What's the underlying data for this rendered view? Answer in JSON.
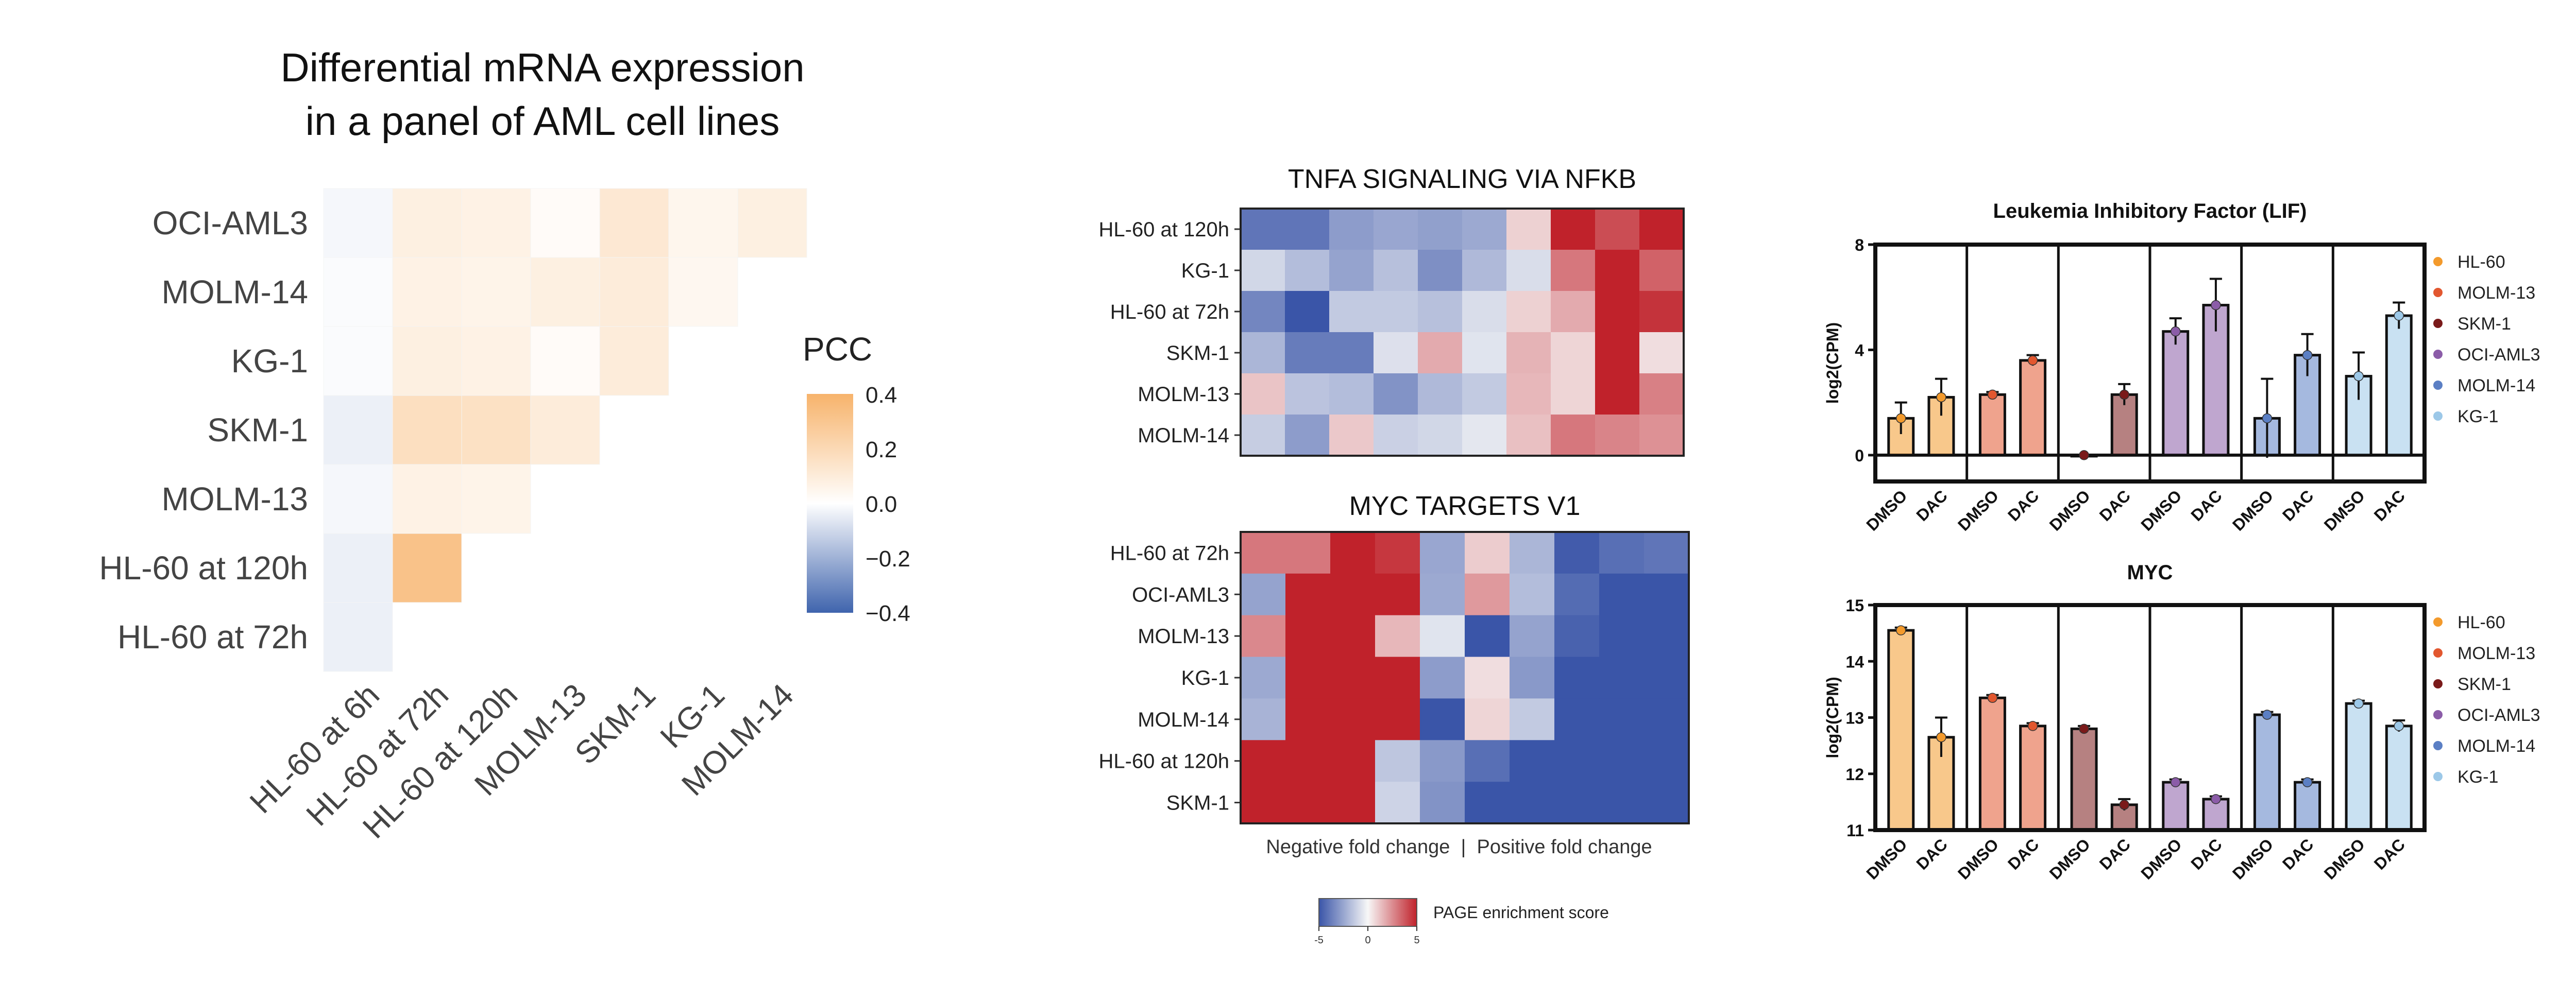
{
  "colors": {
    "pcc_positive": "#f7b36b",
    "pcc_zero": "#ffffff",
    "pcc_negative": "#3f64ad",
    "page_positive": "#c0222b",
    "page_zero": "#f7f7f7",
    "page_negative": "#3a55a8",
    "series": {
      "HL-60": "#f39a2c",
      "MOLM-13": "#e2572f",
      "SKM-1": "#7a1a1a",
      "OCI-AML3": "#8b5ca8",
      "MOLM-14": "#5b7fc4",
      "KG-1": "#9cc8e8"
    }
  },
  "panel_a": {
    "title_line1": "Differential mRNA expression",
    "title_line2": "in a panel of AML cell lines",
    "legend_title": "PCC",
    "legend_ticks": [
      "0.4",
      "0.2",
      "0.0",
      "−0.2",
      "−0.4"
    ]
  },
  "panel_b": {
    "x_caption": "Negative fold change  |  Positive fold change",
    "colorbar_label": "PAGE enrichment score",
    "colorbar_ticks": [
      "-5",
      "0",
      "5"
    ]
  },
  "chart_data": [
    {
      "type": "heatmap",
      "title": "Differential mRNA expression in a panel of AML cell lines",
      "legend_title": "PCC",
      "color_range": [
        -0.4,
        0.4
      ],
      "rows": [
        "OCI-AML3",
        "MOLM-14",
        "KG-1",
        "SKM-1",
        "MOLM-13",
        "HL-60 at 120h",
        "HL-60 at 72h"
      ],
      "columns": [
        "HL-60 at 6h",
        "HL-60 at 72h",
        "HL-60 at 120h",
        "MOLM-13",
        "SKM-1",
        "KG-1",
        "MOLM-14"
      ],
      "values": [
        [
          -0.02,
          0.08,
          0.07,
          0.02,
          0.12,
          0.05,
          0.08
        ],
        [
          -0.01,
          0.07,
          0.06,
          0.08,
          0.1,
          0.04,
          null
        ],
        [
          -0.01,
          0.08,
          0.07,
          0.02,
          0.1,
          null,
          null
        ],
        [
          -0.04,
          0.17,
          0.16,
          0.1,
          null,
          null,
          null
        ],
        [
          -0.02,
          0.07,
          0.06,
          null,
          null,
          null,
          null
        ],
        [
          -0.04,
          0.32,
          null,
          null,
          null,
          null,
          null
        ],
        [
          -0.04,
          null,
          null,
          null,
          null,
          null,
          null
        ]
      ]
    },
    {
      "type": "heatmap",
      "title": "TNFA SIGNALING VIA NFKB",
      "color_range": [
        -5,
        5
      ],
      "rows": [
        "HL-60 at 120h",
        "KG-1",
        "HL-60 at 72h",
        "SKM-1",
        "MOLM-13",
        "MOLM-14"
      ],
      "values": [
        [
          -4.0,
          -4.0,
          -2.8,
          -2.5,
          -2.7,
          -2.4,
          0.9,
          5.0,
          4.0,
          5.0
        ],
        [
          -1.0,
          -1.8,
          -2.6,
          -1.7,
          -3.2,
          -1.9,
          -0.8,
          3.0,
          5.0,
          3.5
        ],
        [
          -3.5,
          -5.0,
          -1.4,
          -1.4,
          -1.7,
          -0.8,
          0.9,
          1.8,
          5.0,
          4.6
        ],
        [
          -2.0,
          -3.8,
          -3.8,
          -0.7,
          1.8,
          -0.6,
          1.6,
          0.8,
          5.0,
          0.6
        ],
        [
          1.2,
          -1.6,
          -1.8,
          -3.1,
          -1.9,
          -1.4,
          1.5,
          0.8,
          5.0,
          2.8
        ],
        [
          -1.3,
          -2.8,
          1.1,
          -1.2,
          -1.0,
          -0.5,
          1.3,
          3.0,
          2.7,
          2.4
        ]
      ]
    },
    {
      "type": "heatmap",
      "title": "MYC TARGETS V1",
      "color_range": [
        -5,
        5
      ],
      "rows": [
        "HL-60 at 72h",
        "OCI-AML3",
        "MOLM-13",
        "KG-1",
        "MOLM-14",
        "HL-60 at 120h",
        "SKM-1"
      ],
      "values": [
        [
          3.0,
          3.0,
          5.0,
          4.5,
          -2.5,
          1.0,
          -2.0,
          -4.8,
          -4.2,
          -4.0
        ],
        [
          -2.6,
          5.0,
          5.0,
          5.0,
          -2.4,
          2.2,
          -1.8,
          -4.3,
          -5.0,
          -5.0
        ],
        [
          2.6,
          5.0,
          5.0,
          1.5,
          -0.6,
          -5.0,
          -2.6,
          -4.6,
          -5.0,
          -5.0
        ],
        [
          -2.4,
          5.0,
          5.0,
          5.0,
          -2.8,
          0.6,
          -2.9,
          -5.0,
          -5.0,
          -5.0
        ],
        [
          -2.1,
          5.0,
          5.0,
          5.0,
          -5.0,
          0.8,
          -1.4,
          -5.0,
          -5.0,
          -5.0
        ],
        [
          5.0,
          5.0,
          5.0,
          -1.5,
          -2.9,
          -4.2,
          -5.0,
          -5.0,
          -5.0,
          -5.0
        ],
        [
          5.0,
          5.0,
          5.0,
          -1.1,
          -3.1,
          -5.0,
          -5.0,
          -5.0,
          -5.0,
          -5.0
        ]
      ]
    },
    {
      "type": "bar",
      "title": "Leukemia Inhibitory Factor (LIF)",
      "ylabel": "log2(CPM)",
      "ylim": [
        -1,
        8
      ],
      "yticks": [
        "0",
        "4",
        "8"
      ],
      "categories": [
        "DMSO",
        "DAC"
      ],
      "series": [
        {
          "name": "HL-60",
          "values": [
            1.4,
            2.2
          ],
          "errors": [
            0.6,
            0.7
          ]
        },
        {
          "name": "MOLM-13",
          "values": [
            2.3,
            3.6
          ],
          "errors": [
            0.1,
            0.2
          ]
        },
        {
          "name": "SKM-1",
          "values": [
            0.0,
            2.3
          ],
          "errors": [
            0.0,
            0.4
          ]
        },
        {
          "name": "OCI-AML3",
          "values": [
            4.7,
            5.7
          ],
          "errors": [
            0.5,
            1.0
          ]
        },
        {
          "name": "MOLM-14",
          "values": [
            1.4,
            3.8
          ],
          "errors": [
            1.5,
            0.8
          ]
        },
        {
          "name": "KG-1",
          "values": [
            3.0,
            5.3
          ],
          "errors": [
            0.9,
            0.5
          ]
        }
      ]
    },
    {
      "type": "bar",
      "title": "MYC",
      "ylabel": "log2(CPM)",
      "ylim": [
        11,
        15
      ],
      "yticks": [
        "11",
        "12",
        "13",
        "14",
        "15"
      ],
      "categories": [
        "DMSO",
        "DAC"
      ],
      "series": [
        {
          "name": "HL-60",
          "values": [
            14.55,
            12.65
          ],
          "errors": [
            0.05,
            0.35
          ]
        },
        {
          "name": "MOLM-13",
          "values": [
            13.35,
            12.85
          ],
          "errors": [
            0.05,
            0.05
          ]
        },
        {
          "name": "SKM-1",
          "values": [
            12.8,
            11.45
          ],
          "errors": [
            0.05,
            0.1
          ]
        },
        {
          "name": "OCI-AML3",
          "values": [
            11.85,
            11.55
          ],
          "errors": [
            0.05,
            0.05
          ]
        },
        {
          "name": "MOLM-14",
          "values": [
            13.05,
            11.85
          ],
          "errors": [
            0.05,
            0.05
          ]
        },
        {
          "name": "KG-1",
          "values": [
            13.25,
            12.85
          ],
          "errors": [
            0.05,
            0.1
          ]
        }
      ]
    }
  ]
}
